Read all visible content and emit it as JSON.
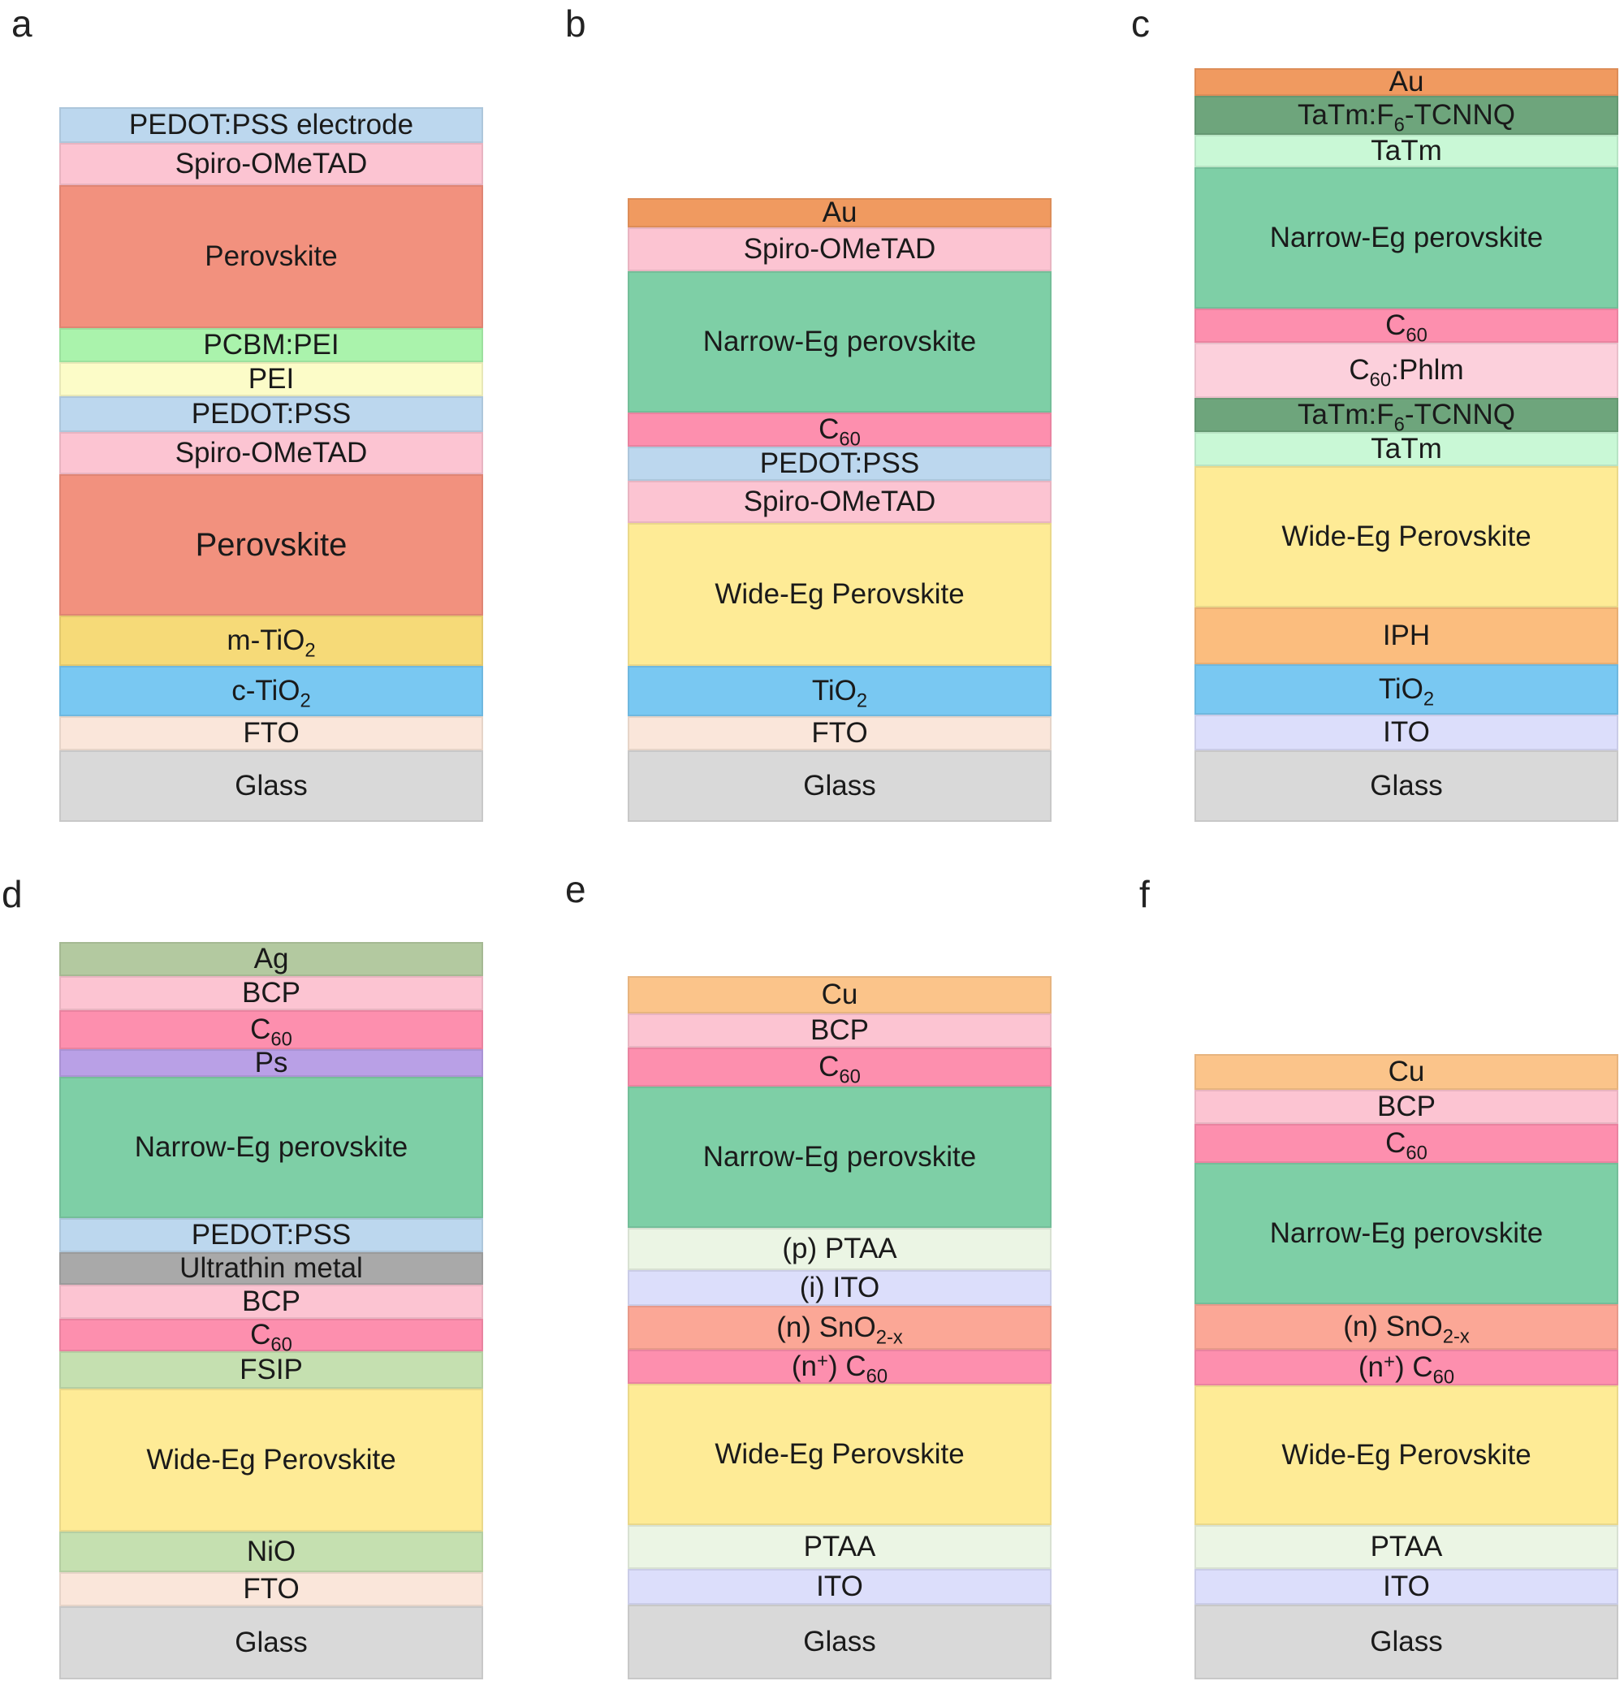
{
  "panels": [
    {
      "label": "a",
      "layers": [
        {
          "text": "PEDOT:PSS electrode",
          "color": "#bcd7ee"
        },
        {
          "text": "Spiro-OMeTAD",
          "color": "#fcc4d2"
        },
        {
          "text": "Perovskite",
          "color": "#f2917e"
        },
        {
          "text": "PCBM:PEI",
          "color": "#aaf3ac"
        },
        {
          "text": "PEI",
          "color": "#fcfcc8"
        },
        {
          "text": "PEDOT:PSS",
          "color": "#bcd7ee"
        },
        {
          "text": "Spiro-OMeTAD",
          "color": "#fcc4d2"
        },
        {
          "text": "Perovskite",
          "color": "#f2917e"
        },
        {
          "text_html": "m-TiO<sub>2</sub>",
          "color": "#f6da78"
        },
        {
          "text_html": "c-TiO<sub>2</sub>",
          "color": "#79c8f2"
        },
        {
          "text": "FTO",
          "color": "#fae6da"
        },
        {
          "text": "Glass",
          "color": "#d9d9d9"
        }
      ]
    },
    {
      "label": "b",
      "layers": [
        {
          "text": "Au",
          "color": "#f09a60"
        },
        {
          "text": "Spiro-OMeTAD",
          "color": "#fcc4d2"
        },
        {
          "text": "Narrow-Eg perovskite",
          "color": "#7ecfa6"
        },
        {
          "text_html": "C<sub>60</sub>",
          "color": "#fd8fae"
        },
        {
          "text": "PEDOT:PSS",
          "color": "#bcd7ee"
        },
        {
          "text": "Spiro-OMeTAD",
          "color": "#fcc4d2"
        },
        {
          "text": "Wide-Eg Perovskite",
          "color": "#feeb96"
        },
        {
          "text_html": "TiO<sub>2</sub>",
          "color": "#79c8f2"
        },
        {
          "text": "FTO",
          "color": "#fae6da"
        },
        {
          "text": "Glass",
          "color": "#d9d9d9"
        }
      ]
    },
    {
      "label": "c",
      "layers": [
        {
          "text": "Au",
          "color": "#f09a60"
        },
        {
          "text_html": "TaTm:F<sub>6</sub>-TCNNQ",
          "color": "#6ea57c"
        },
        {
          "text": "TaTm",
          "color": "#c9f8d6"
        },
        {
          "text": "Narrow-Eg perovskite",
          "color": "#7ecfa6"
        },
        {
          "text_html": "C<sub>60</sub>",
          "color": "#fd8fae"
        },
        {
          "text_html": "C<sub>60</sub>:Phlm",
          "color": "#fcd0dc"
        },
        {
          "text_html": "TaTm:F<sub>6</sub>-TCNNQ",
          "color": "#6ea57c"
        },
        {
          "text": "TaTm",
          "color": "#c9f8d6"
        },
        {
          "text": "Wide-Eg Perovskite",
          "color": "#feeb96"
        },
        {
          "text": "IPH",
          "color": "#fbbd7e"
        },
        {
          "text_html": "TiO<sub>2</sub>",
          "color": "#79c8f2"
        },
        {
          "text": "ITO",
          "color": "#dcdefb"
        },
        {
          "text": "Glass",
          "color": "#d9d9d9"
        }
      ]
    },
    {
      "label": "d",
      "layers": [
        {
          "text": "Ag",
          "color": "#b3c9a0"
        },
        {
          "text": "BCP",
          "color": "#fcc4d2"
        },
        {
          "text_html": "C<sub>60</sub>",
          "color": "#fd8fae"
        },
        {
          "text": "Ps",
          "color": "#b9a0e6"
        },
        {
          "text": "Narrow-Eg perovskite",
          "color": "#7ecfa6"
        },
        {
          "text": "PEDOT:PSS",
          "color": "#bcd7ee"
        },
        {
          "text": "Ultrathin metal",
          "color": "#a9a9a9"
        },
        {
          "text": "BCP",
          "color": "#fcc4d2"
        },
        {
          "text_html": "C<sub>60</sub>",
          "color": "#fd8fae"
        },
        {
          "text": "FSIP",
          "color": "#c5e0b0"
        },
        {
          "text": "Wide-Eg Perovskite",
          "color": "#feeb96"
        },
        {
          "text": "NiO",
          "color": "#c5e0b0"
        },
        {
          "text": "FTO",
          "color": "#fae6da"
        },
        {
          "text": "Glass",
          "color": "#d9d9d9"
        }
      ]
    },
    {
      "label": "e",
      "layers": [
        {
          "text": "Cu",
          "color": "#fbc48a"
        },
        {
          "text": "BCP",
          "color": "#fcc4d2"
        },
        {
          "text_html": "C<sub>60</sub>",
          "color": "#fd8fae"
        },
        {
          "text": "Narrow-Eg perovskite",
          "color": "#7ecfa6"
        },
        {
          "text": "(p) PTAA",
          "color": "#ebf5e4"
        },
        {
          "text": "(i) ITO",
          "color": "#dcdefb"
        },
        {
          "text_html": "(n) SnO<sub>2-x</sub>",
          "color": "#fba796"
        },
        {
          "text_html": "(n<sup>+</sup>) C<sub>60</sub>",
          "color": "#fd8fae"
        },
        {
          "text": "Wide-Eg Perovskite",
          "color": "#feeb96"
        },
        {
          "text": "PTAA",
          "color": "#ebf5e4"
        },
        {
          "text": "ITO",
          "color": "#dcdefb"
        },
        {
          "text": "Glass",
          "color": "#d9d9d9"
        }
      ]
    },
    {
      "label": "f",
      "layers": [
        {
          "text": "Cu",
          "color": "#fbc48a"
        },
        {
          "text": "BCP",
          "color": "#fcc4d2"
        },
        {
          "text_html": "C<sub>60</sub>",
          "color": "#fd8fae"
        },
        {
          "text": "Narrow-Eg perovskite",
          "color": "#7ecfa6"
        },
        {
          "text_html": "(n) SnO<sub>2-x</sub>",
          "color": "#fba796"
        },
        {
          "text_html": "(n<sup>+</sup>) C<sub>60</sub>",
          "color": "#fd8fae"
        },
        {
          "text": "Wide-Eg Perovskite",
          "color": "#feeb96"
        },
        {
          "text": "PTAA",
          "color": "#ebf5e4"
        },
        {
          "text": "ITO",
          "color": "#dcdefb"
        },
        {
          "text": "Glass",
          "color": "#d9d9d9"
        }
      ]
    }
  ]
}
